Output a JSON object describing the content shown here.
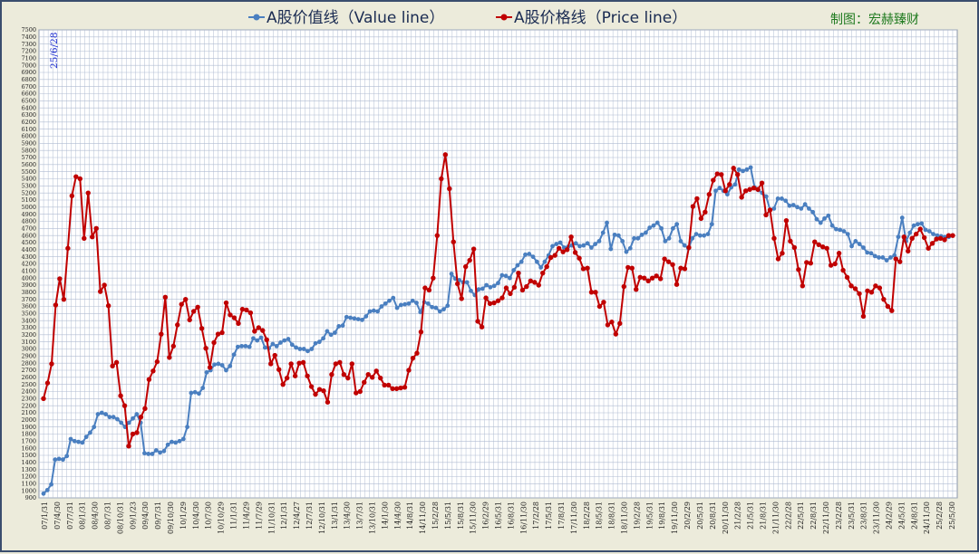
{
  "credit": "制图：宏赫臻财",
  "date_label": "25/6/28",
  "colors": {
    "value": "#4a7fc0",
    "price": "#c00000",
    "grid": "#b0bcd2",
    "frame": "#3a4d6e",
    "plot_bg": "#ffffff"
  },
  "chart_data": {
    "type": "line",
    "title": "",
    "xlabel": "",
    "ylabel": "",
    "ylim": [
      900,
      7500
    ],
    "ystep": 100,
    "grid": true,
    "legend_position": "top-center",
    "x_tick_labels": [
      "07/1/31",
      "07/4/30",
      "07/7/31",
      "08/1/31",
      "08/4/30",
      "08/7/31",
      "08/10/31",
      "09/1/23",
      "09/4/30",
      "09/7/31",
      "09/10/30",
      "10/1/29",
      "10/4/30",
      "10/7/30",
      "10/10/29",
      "11/1/31",
      "11/4/29",
      "11/7/29",
      "11/10/31",
      "12/1/31",
      "12/4/27",
      "12/7/31",
      "12/10/31",
      "13/1/31",
      "13/4/30",
      "13/7/31",
      "13/10/31",
      "14/1/30",
      "14/4/30",
      "14/8/31",
      "14/11/30",
      "15/2/28",
      "15/5/31",
      "15/8/31",
      "15/11/30",
      "16/2/29",
      "16/5/31",
      "16/8/31",
      "16/11/30",
      "17/2/28",
      "17/5/31",
      "17/8/31",
      "17/11/30",
      "18/2/28",
      "18/5/31",
      "18/8/31",
      "18/11/30",
      "19/2/28",
      "19/5/31",
      "19/8/31",
      "19/11/30",
      "20/2/29",
      "20/5/31",
      "20/8/31",
      "20/11/30",
      "21/2/28",
      "21/5/31",
      "21/8/31",
      "21/11/30",
      "22/2/28",
      "22/5/31",
      "22/8/31",
      "22/11/30",
      "23/2/28",
      "23/5/31",
      "23/8/31",
      "23/11/30",
      "24/2/29",
      "24/5/31",
      "24/8/31",
      "24/11/30",
      "25/2/28",
      "25/5/30"
    ],
    "series": [
      {
        "name": "A股价值线（Value line）",
        "marker": "circle",
        "values": [
          960,
          1010,
          1090,
          1440,
          1450,
          1440,
          1490,
          1730,
          1700,
          1690,
          1680,
          1760,
          1820,
          1900,
          2080,
          2100,
          2080,
          2040,
          2040,
          2010,
          1960,
          1900,
          1960,
          2020,
          2080,
          1960,
          1530,
          1520,
          1520,
          1570,
          1540,
          1560,
          1650,
          1690,
          1680,
          1700,
          1730,
          1900,
          2380,
          2390,
          2370,
          2450,
          2670,
          2700,
          2780,
          2790,
          2770,
          2700,
          2760,
          2920,
          3030,
          3040,
          3040,
          3030,
          3150,
          3120,
          3160,
          3020,
          3010,
          3070,
          3040,
          3090,
          3120,
          3140,
          3060,
          3020,
          3000,
          3000,
          2970,
          3000,
          3080,
          3100,
          3150,
          3250,
          3200,
          3230,
          3320,
          3330,
          3450,
          3440,
          3430,
          3420,
          3410,
          3460,
          3530,
          3540,
          3530,
          3600,
          3640,
          3680,
          3720,
          3580,
          3620,
          3630,
          3640,
          3680,
          3650,
          3520,
          3660,
          3640,
          3590,
          3580,
          3530,
          3560,
          3610,
          4060,
          3990,
          3970,
          3940,
          3940,
          3820,
          3760,
          3840,
          3850,
          3900,
          3870,
          3890,
          3930,
          4040,
          4030,
          4000,
          4110,
          4180,
          4230,
          4330,
          4340,
          4300,
          4230,
          4150,
          4230,
          4320,
          4450,
          4480,
          4500,
          4430,
          4440,
          4460,
          4490,
          4450,
          4460,
          4490,
          4430,
          4480,
          4520,
          4640,
          4780,
          4410,
          4610,
          4600,
          4520,
          4370,
          4420,
          4560,
          4560,
          4610,
          4640,
          4710,
          4740,
          4780,
          4700,
          4520,
          4560,
          4700,
          4760,
          4520,
          4460,
          4420,
          4560,
          4620,
          4600,
          4600,
          4620,
          4760,
          5230,
          5270,
          5230,
          5180,
          5280,
          5320,
          5530,
          5510,
          5530,
          5560,
          5280,
          5240,
          5200,
          5150,
          4960,
          4980,
          5120,
          5120,
          5090,
          5020,
          5030,
          5000,
          4980,
          5040,
          4980,
          4930,
          4830,
          4780,
          4840,
          4880,
          4740,
          4690,
          4680,
          4660,
          4620,
          4450,
          4520,
          4480,
          4430,
          4360,
          4350,
          4310,
          4290,
          4290,
          4250,
          4290,
          4320,
          4580,
          4850,
          4520,
          4640,
          4740,
          4760,
          4770,
          4680,
          4660,
          4620,
          4600,
          4590,
          4580,
          4580,
          4600
        ]
      },
      {
        "name": "A股价格线（Price line）",
        "marker": "circle",
        "values": [
          2300,
          2520,
          2790,
          3620,
          3990,
          3700,
          4420,
          5160,
          5430,
          5400,
          4560,
          5200,
          4580,
          4700,
          3810,
          3900,
          3610,
          2760,
          2810,
          2340,
          2200,
          1630,
          1800,
          1820,
          2040,
          2160,
          2570,
          2690,
          2820,
          3210,
          3730,
          2880,
          3040,
          3340,
          3630,
          3700,
          3410,
          3530,
          3590,
          3290,
          3010,
          2740,
          3090,
          3210,
          3230,
          3650,
          3480,
          3440,
          3360,
          3560,
          3550,
          3510,
          3250,
          3300,
          3260,
          3130,
          2790,
          2910,
          2710,
          2500,
          2590,
          2790,
          2620,
          2800,
          2810,
          2620,
          2470,
          2360,
          2430,
          2410,
          2250,
          2640,
          2790,
          2810,
          2640,
          2590,
          2790,
          2380,
          2400,
          2530,
          2640,
          2600,
          2690,
          2590,
          2490,
          2490,
          2440,
          2440,
          2450,
          2460,
          2700,
          2870,
          2940,
          3240,
          3860,
          3830,
          4000,
          4600,
          5400,
          5740,
          5260,
          4510,
          3920,
          3710,
          4160,
          4250,
          4410,
          3390,
          3310,
          3720,
          3640,
          3650,
          3680,
          3720,
          3860,
          3780,
          3870,
          4070,
          3830,
          3880,
          3960,
          3940,
          3900,
          4070,
          4160,
          4290,
          4320,
          4420,
          4370,
          4400,
          4580,
          4360,
          4280,
          4130,
          4140,
          3800,
          3800,
          3600,
          3660,
          3340,
          3380,
          3210,
          3360,
          3880,
          4150,
          4140,
          3840,
          4010,
          4000,
          3960,
          4000,
          4030,
          3990,
          4270,
          4230,
          4190,
          3910,
          4140,
          4130,
          4430,
          5010,
          5120,
          4840,
          4930,
          5180,
          5380,
          5470,
          5460,
          5230,
          5320,
          5550,
          5460,
          5140,
          5230,
          5250,
          5270,
          5250,
          5340,
          4890,
          4960,
          4560,
          4270,
          4350,
          4810,
          4520,
          4430,
          4120,
          3890,
          4220,
          4210,
          4510,
          4470,
          4440,
          4420,
          4180,
          4200,
          4350,
          4110,
          4010,
          3890,
          3850,
          3780,
          3460,
          3820,
          3800,
          3890,
          3860,
          3700,
          3600,
          3540,
          4270,
          4230,
          4580,
          4380,
          4560,
          4620,
          4690,
          4570,
          4420,
          4490,
          4550,
          4560,
          4540,
          4600,
          4600
        ]
      }
    ]
  }
}
